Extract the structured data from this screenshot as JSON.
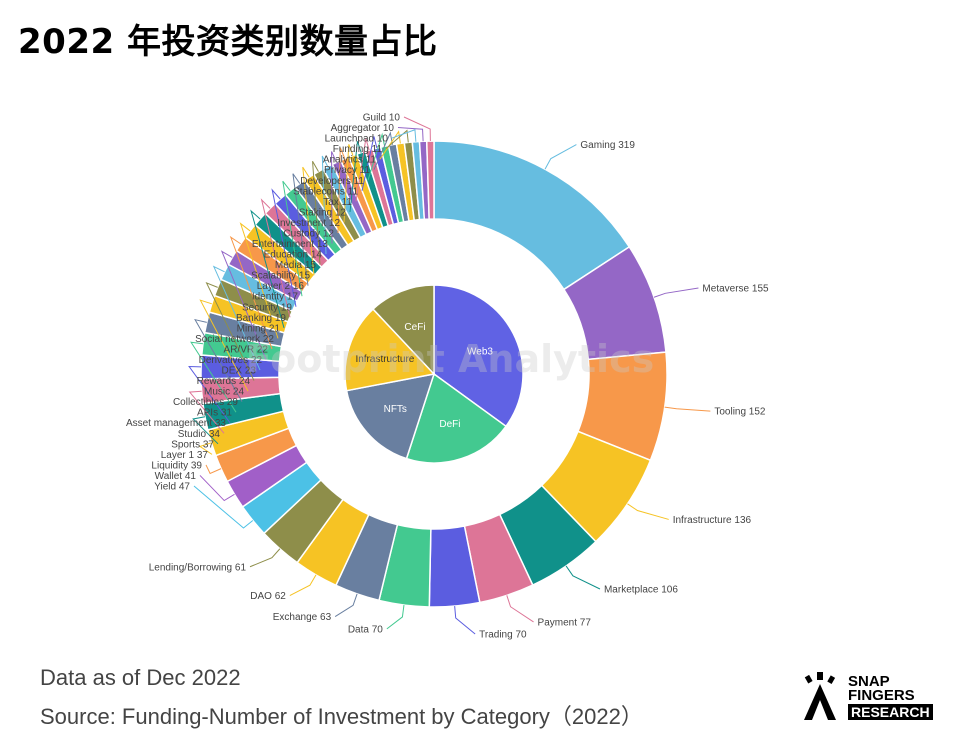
{
  "title": "2022 年投资类别数量占比",
  "watermark": "Footprint Analytics",
  "notes": {
    "date": "Data as of Dec 2022",
    "source": "Source: Funding-Number of Investment by Category（2022）"
  },
  "logo": {
    "line1": "SNAP",
    "line2": "FINGERS",
    "line3": "RESEARCH"
  },
  "chart_data": [
    {
      "type": "pie",
      "donut": true,
      "ring": "outer",
      "labels_position": "outside with leader lines",
      "slices": [
        {
          "label": "Gaming",
          "value": 319,
          "color": "#66bde0"
        },
        {
          "label": "Metaverse",
          "value": 155,
          "color": "#9467c6"
        },
        {
          "label": "Tooling",
          "value": 152,
          "color": "#f7984a"
        },
        {
          "label": "Infrastructure",
          "value": 136,
          "color": "#f6c324"
        },
        {
          "label": "Marketplace",
          "value": 106,
          "color": "#10918a"
        },
        {
          "label": "Payment",
          "value": 77,
          "color": "#dd7597"
        },
        {
          "label": "Trading",
          "value": 70,
          "color": "#5b5de0"
        },
        {
          "label": "Data",
          "value": 70,
          "color": "#43c990"
        },
        {
          "label": "Exchange",
          "value": 63,
          "color": "#697fa0"
        },
        {
          "label": "DAO",
          "value": 62,
          "color": "#f6c324"
        },
        {
          "label": "Lending/Borrowing",
          "value": 61,
          "color": "#8e8e4a"
        },
        {
          "label": "Yield",
          "value": 47,
          "color": "#4cc1e6"
        },
        {
          "label": "Wallet",
          "value": 41,
          "color": "#a15fc8"
        },
        {
          "label": "Liquidity",
          "value": 39,
          "color": "#f7984a"
        },
        {
          "label": "Layer 1",
          "value": 37,
          "color": "#f6c324"
        },
        {
          "label": "Sports",
          "value": 37,
          "color": "#10918a"
        },
        {
          "label": "Studio",
          "value": 34,
          "color": "#dd7597"
        },
        {
          "label": "Asset management",
          "value": 33,
          "color": "#5b5de0"
        },
        {
          "label": "APIs",
          "value": 31,
          "color": "#43c990"
        },
        {
          "label": "Collectibles",
          "value": 29,
          "color": "#697fa0"
        },
        {
          "label": "Music",
          "value": 24,
          "color": "#f6c324"
        },
        {
          "label": "Rewards",
          "value": 24,
          "color": "#8e8e4a"
        },
        {
          "label": "DEX",
          "value": 23,
          "color": "#66bde0"
        },
        {
          "label": "Derivatives",
          "value": 22,
          "color": "#9467c6"
        },
        {
          "label": "AR/VR",
          "value": 22,
          "color": "#f7984a"
        },
        {
          "label": "Social network",
          "value": 22,
          "color": "#f6c324"
        },
        {
          "label": "Mining",
          "value": 21,
          "color": "#10918a"
        },
        {
          "label": "Banking",
          "value": 19,
          "color": "#dd7597"
        },
        {
          "label": "Security",
          "value": 19,
          "color": "#5b5de0"
        },
        {
          "label": "Identity",
          "value": 17,
          "color": "#43c990"
        },
        {
          "label": "Layer 2",
          "value": 16,
          "color": "#697fa0"
        },
        {
          "label": "Scalability",
          "value": 15,
          "color": "#f6c324"
        },
        {
          "label": "Media",
          "value": 15,
          "color": "#8e8e4a"
        },
        {
          "label": "Education",
          "value": 14,
          "color": "#66bde0"
        },
        {
          "label": "Entertainment",
          "value": 13,
          "color": "#9467c6"
        },
        {
          "label": "Custody",
          "value": 12,
          "color": "#f7984a"
        },
        {
          "label": "Investment",
          "value": 12,
          "color": "#f6c324"
        },
        {
          "label": "Staking",
          "value": 12,
          "color": "#10918a"
        },
        {
          "label": "Tax",
          "value": 11,
          "color": "#dd7597"
        },
        {
          "label": "Stablecoins",
          "value": 11,
          "color": "#5b5de0"
        },
        {
          "label": "Developers",
          "value": 11,
          "color": "#43c990"
        },
        {
          "label": "Privacy",
          "value": 11,
          "color": "#697fa0"
        },
        {
          "label": "Analytics",
          "value": 11,
          "color": "#f6c324"
        },
        {
          "label": "Funding",
          "value": 11,
          "color": "#8e8e4a"
        },
        {
          "label": "Launchpad",
          "value": 10,
          "color": "#66bde0"
        },
        {
          "label": "Aggregator",
          "value": 10,
          "color": "#9467c6"
        },
        {
          "label": "Guild",
          "value": 10,
          "color": "#dd7597"
        }
      ]
    },
    {
      "type": "pie",
      "ring": "inner",
      "labels_position": "inside",
      "slices": [
        {
          "label": "Web3",
          "value": 35,
          "color": "#6062e4"
        },
        {
          "label": "DeFi",
          "value": 20,
          "color": "#43c990"
        },
        {
          "label": "NFTs",
          "value": 17,
          "color": "#697fa0"
        },
        {
          "label": "Infrastructure",
          "value": 16,
          "color": "#f6c324"
        },
        {
          "label": "CeFi",
          "value": 12,
          "color": "#8e8e4a"
        }
      ]
    }
  ]
}
